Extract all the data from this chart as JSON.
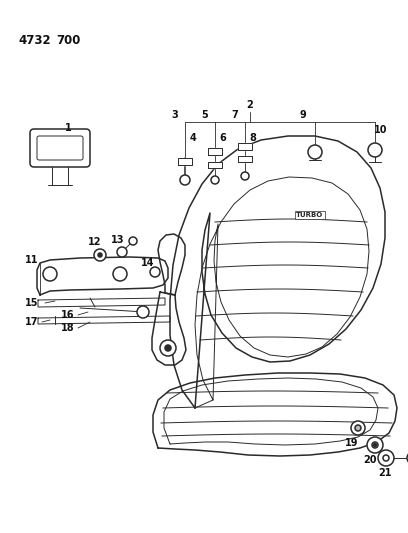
{
  "title1": "4732",
  "title2": "700",
  "bg_color": "#ffffff",
  "line_color": "#2a2a2a",
  "text_color": "#111111",
  "fig_width": 4.08,
  "fig_height": 5.33,
  "dpi": 100,
  "lw_main": 1.1,
  "lw_thin": 0.7,
  "lw_leader": 0.6
}
